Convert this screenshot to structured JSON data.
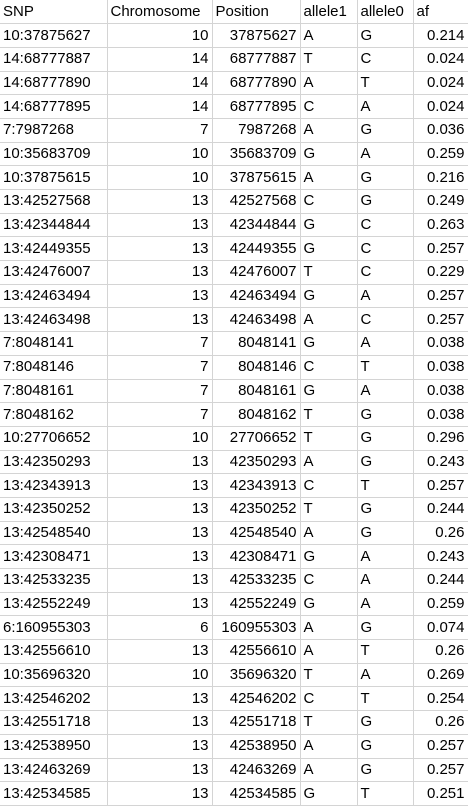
{
  "columns": [
    "SNP",
    "Chromosome",
    "Position",
    "allele1",
    "allele0",
    "af"
  ],
  "rows": [
    [
      "10:37875627",
      "10",
      "37875627",
      "A",
      "G",
      "0.214"
    ],
    [
      "14:68777887",
      "14",
      "68777887",
      "T",
      "C",
      "0.024"
    ],
    [
      "14:68777890",
      "14",
      "68777890",
      "A",
      "T",
      "0.024"
    ],
    [
      "14:68777895",
      "14",
      "68777895",
      "C",
      "A",
      "0.024"
    ],
    [
      "7:7987268",
      "7",
      "7987268",
      "A",
      "G",
      "0.036"
    ],
    [
      "10:35683709",
      "10",
      "35683709",
      "G",
      "A",
      "0.259"
    ],
    [
      "10:37875615",
      "10",
      "37875615",
      "A",
      "G",
      "0.216"
    ],
    [
      "13:42527568",
      "13",
      "42527568",
      "C",
      "G",
      "0.249"
    ],
    [
      "13:42344844",
      "13",
      "42344844",
      "G",
      "C",
      "0.263"
    ],
    [
      "13:42449355",
      "13",
      "42449355",
      "G",
      "C",
      "0.257"
    ],
    [
      "13:42476007",
      "13",
      "42476007",
      "T",
      "C",
      "0.229"
    ],
    [
      "13:42463494",
      "13",
      "42463494",
      "G",
      "A",
      "0.257"
    ],
    [
      "13:42463498",
      "13",
      "42463498",
      "A",
      "C",
      "0.257"
    ],
    [
      "7:8048141",
      "7",
      "8048141",
      "G",
      "A",
      "0.038"
    ],
    [
      "7:8048146",
      "7",
      "8048146",
      "C",
      "T",
      "0.038"
    ],
    [
      "7:8048161",
      "7",
      "8048161",
      "G",
      "A",
      "0.038"
    ],
    [
      "7:8048162",
      "7",
      "8048162",
      "T",
      "G",
      "0.038"
    ],
    [
      "10:27706652",
      "10",
      "27706652",
      "T",
      "G",
      "0.296"
    ],
    [
      "13:42350293",
      "13",
      "42350293",
      "A",
      "G",
      "0.243"
    ],
    [
      "13:42343913",
      "13",
      "42343913",
      "C",
      "T",
      "0.257"
    ],
    [
      "13:42350252",
      "13",
      "42350252",
      "T",
      "G",
      "0.244"
    ],
    [
      "13:42548540",
      "13",
      "42548540",
      "A",
      "G",
      "0.26"
    ],
    [
      "13:42308471",
      "13",
      "42308471",
      "G",
      "A",
      "0.243"
    ],
    [
      "13:42533235",
      "13",
      "42533235",
      "C",
      "A",
      "0.244"
    ],
    [
      "13:42552249",
      "13",
      "42552249",
      "G",
      "A",
      "0.259"
    ],
    [
      "6:160955303",
      "6",
      "160955303",
      "A",
      "G",
      "0.074"
    ],
    [
      "13:42556610",
      "13",
      "42556610",
      "A",
      "T",
      "0.26"
    ],
    [
      "10:35696320",
      "10",
      "35696320",
      "T",
      "A",
      "0.269"
    ],
    [
      "13:42546202",
      "13",
      "42546202",
      "C",
      "T",
      "0.254"
    ],
    [
      "13:42551718",
      "13",
      "42551718",
      "T",
      "G",
      "0.26"
    ],
    [
      "13:42538950",
      "13",
      "42538950",
      "A",
      "G",
      "0.257"
    ],
    [
      "13:42463269",
      "13",
      "42463269",
      "A",
      "G",
      "0.257"
    ],
    [
      "13:42534585",
      "13",
      "42534585",
      "G",
      "T",
      "0.251"
    ]
  ]
}
